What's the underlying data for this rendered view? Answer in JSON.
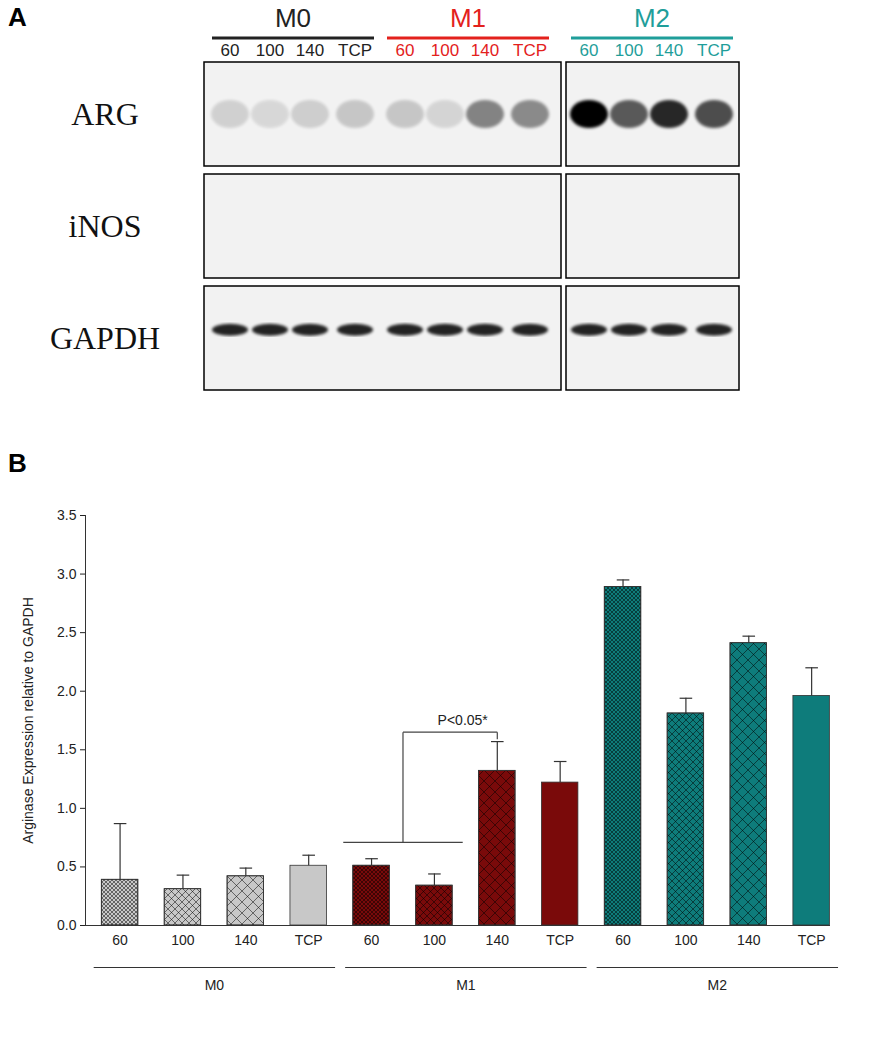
{
  "panel_a": {
    "label": "A",
    "groups": [
      {
        "name": "M0",
        "color": "#222222"
      },
      {
        "name": "M1",
        "color": "#e3211c"
      },
      {
        "name": "M2",
        "color": "#1f9e9a"
      }
    ],
    "lanes": [
      "60",
      "100",
      "140",
      "TCP"
    ],
    "rows": [
      "ARG",
      "iNOS",
      "GAPDH"
    ]
  },
  "chart_data": {
    "type": "bar",
    "panel_label": "B",
    "ylabel": "Arginase Expression relative to GAPDH",
    "ylim": [
      0,
      3.5
    ],
    "yticks": [
      {
        "value": 0,
        "label": "0.0"
      },
      {
        "value": 0.5,
        "label": "0.5"
      },
      {
        "value": 1,
        "label": "1.0"
      },
      {
        "value": 1.5,
        "label": "1.5"
      },
      {
        "value": 2,
        "label": "2.0"
      },
      {
        "value": 2.5,
        "label": "2.5"
      },
      {
        "value": 3,
        "label": "3.0"
      },
      {
        "value": 3.5,
        "label": "3.5"
      }
    ],
    "groups": [
      {
        "name": "M0",
        "color": "#c8c8c8",
        "categories": [
          "60",
          "100",
          "140",
          "TCP"
        ],
        "values": [
          0.39,
          0.31,
          0.42,
          0.51
        ],
        "errors": [
          0.48,
          0.12,
          0.07,
          0.09
        ]
      },
      {
        "name": "M1",
        "color": "#7a0a0a",
        "categories": [
          "60",
          "100",
          "140",
          "TCP"
        ],
        "values": [
          0.51,
          0.34,
          1.32,
          1.22
        ],
        "errors": [
          0.06,
          0.1,
          0.25,
          0.18
        ]
      },
      {
        "name": "M2",
        "color": "#0e7c7b",
        "categories": [
          "60",
          "100",
          "140",
          "TCP"
        ],
        "values": [
          2.89,
          1.81,
          2.41,
          1.96
        ],
        "errors": [
          0.06,
          0.13,
          0.06,
          0.24
        ]
      }
    ],
    "annotation": {
      "text": "P<0.05*",
      "from": [
        [
          "M1",
          "60"
        ],
        [
          "M1",
          "100"
        ]
      ],
      "to": [
        "M1",
        "140"
      ]
    }
  }
}
